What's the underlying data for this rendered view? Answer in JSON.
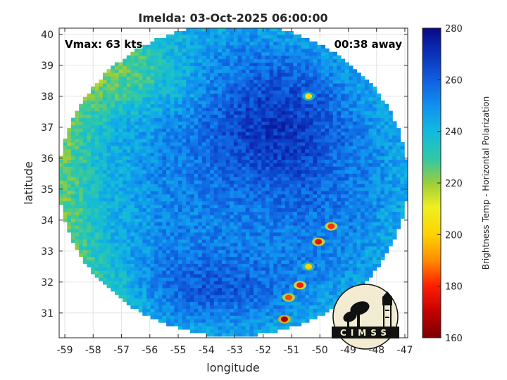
{
  "chart_data": {
    "type": "heatmap",
    "title": "Imelda: 03-Oct-2025 06:00:00",
    "xlabel": "longitude",
    "ylabel": "latitude",
    "xlim": [
      -59.2,
      -46.9
    ],
    "ylim": [
      30.2,
      40.2
    ],
    "xticks": [
      -59,
      -58,
      -57,
      -56,
      -55,
      -54,
      -53,
      -52,
      -51,
      -50,
      -49,
      -48,
      -47
    ],
    "yticks": [
      31,
      32,
      33,
      34,
      35,
      36,
      37,
      38,
      39,
      40
    ],
    "grid": true,
    "annotations": {
      "vmax": "Vmax: 63 kts",
      "time_away": "00:38 away"
    },
    "colorbar": {
      "label": "Brightness Temp - Horizontal Polarization",
      "min": 160,
      "max": 280,
      "ticks": [
        160,
        180,
        200,
        220,
        240,
        260,
        280
      ],
      "colormap": "parula"
    },
    "swath": {
      "center": [
        -53.05,
        35.3
      ],
      "radius_lon": 6.15,
      "radius_lat": 5.05
    },
    "features": [
      {
        "kind": "cold_core",
        "lon": -52.3,
        "lat": 37.0,
        "value": 266
      },
      {
        "kind": "cold_band",
        "lon": -53.8,
        "lat": 31.8,
        "value": 262
      },
      {
        "kind": "warm_region_west",
        "lon": -58.2,
        "lat": 35.5,
        "value": 228
      },
      {
        "kind": "warm_region_northwest",
        "lon": -55.8,
        "lat": 38.5,
        "value": 232
      },
      {
        "kind": "convective_cell",
        "lon": -50.05,
        "lat": 33.3,
        "value": 176
      },
      {
        "kind": "convective_cell",
        "lon": -49.6,
        "lat": 33.8,
        "value": 182
      },
      {
        "kind": "convective_cell",
        "lon": -50.7,
        "lat": 31.9,
        "value": 180
      },
      {
        "kind": "convective_cell",
        "lon": -51.1,
        "lat": 31.5,
        "value": 184
      },
      {
        "kind": "convective_cell",
        "lon": -51.25,
        "lat": 30.8,
        "value": 166
      },
      {
        "kind": "convective_cell",
        "lon": -50.4,
        "lat": 32.5,
        "value": 200
      },
      {
        "kind": "convective_cell",
        "lon": -50.4,
        "lat": 38.0,
        "value": 205
      }
    ]
  },
  "logo": {
    "text": "CIMSS"
  }
}
